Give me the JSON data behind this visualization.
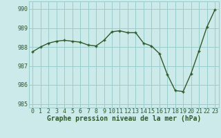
{
  "x": [
    0,
    1,
    2,
    3,
    4,
    5,
    6,
    7,
    8,
    9,
    10,
    11,
    12,
    13,
    14,
    15,
    16,
    17,
    18,
    19,
    20,
    21,
    22,
    23
  ],
  "y": [
    987.75,
    988.0,
    988.2,
    988.3,
    988.35,
    988.3,
    988.25,
    988.1,
    988.05,
    988.35,
    988.8,
    988.85,
    988.75,
    988.75,
    988.2,
    988.05,
    987.65,
    986.55,
    985.7,
    985.65,
    986.6,
    987.8,
    989.05,
    989.95
  ],
  "ylim": [
    984.8,
    990.4
  ],
  "yticks": [
    985,
    986,
    987,
    988,
    989,
    990
  ],
  "xticks": [
    0,
    1,
    2,
    3,
    4,
    5,
    6,
    7,
    8,
    9,
    10,
    11,
    12,
    13,
    14,
    15,
    16,
    17,
    18,
    19,
    20,
    21,
    22,
    23
  ],
  "xlabel": "Graphe pression niveau de la mer (hPa)",
  "line_color": "#2d5a27",
  "marker_color": "#2d5a27",
  "bg_color": "#cceaea",
  "grid_color": "#99cccc",
  "text_color": "#2d5a27",
  "xlabel_fontsize": 7.0,
  "xlabel_fontweight": "bold",
  "tick_fontsize": 6.0,
  "marker": "+",
  "linewidth": 1.0,
  "markersize": 3.5,
  "markeredgewidth": 1.0
}
